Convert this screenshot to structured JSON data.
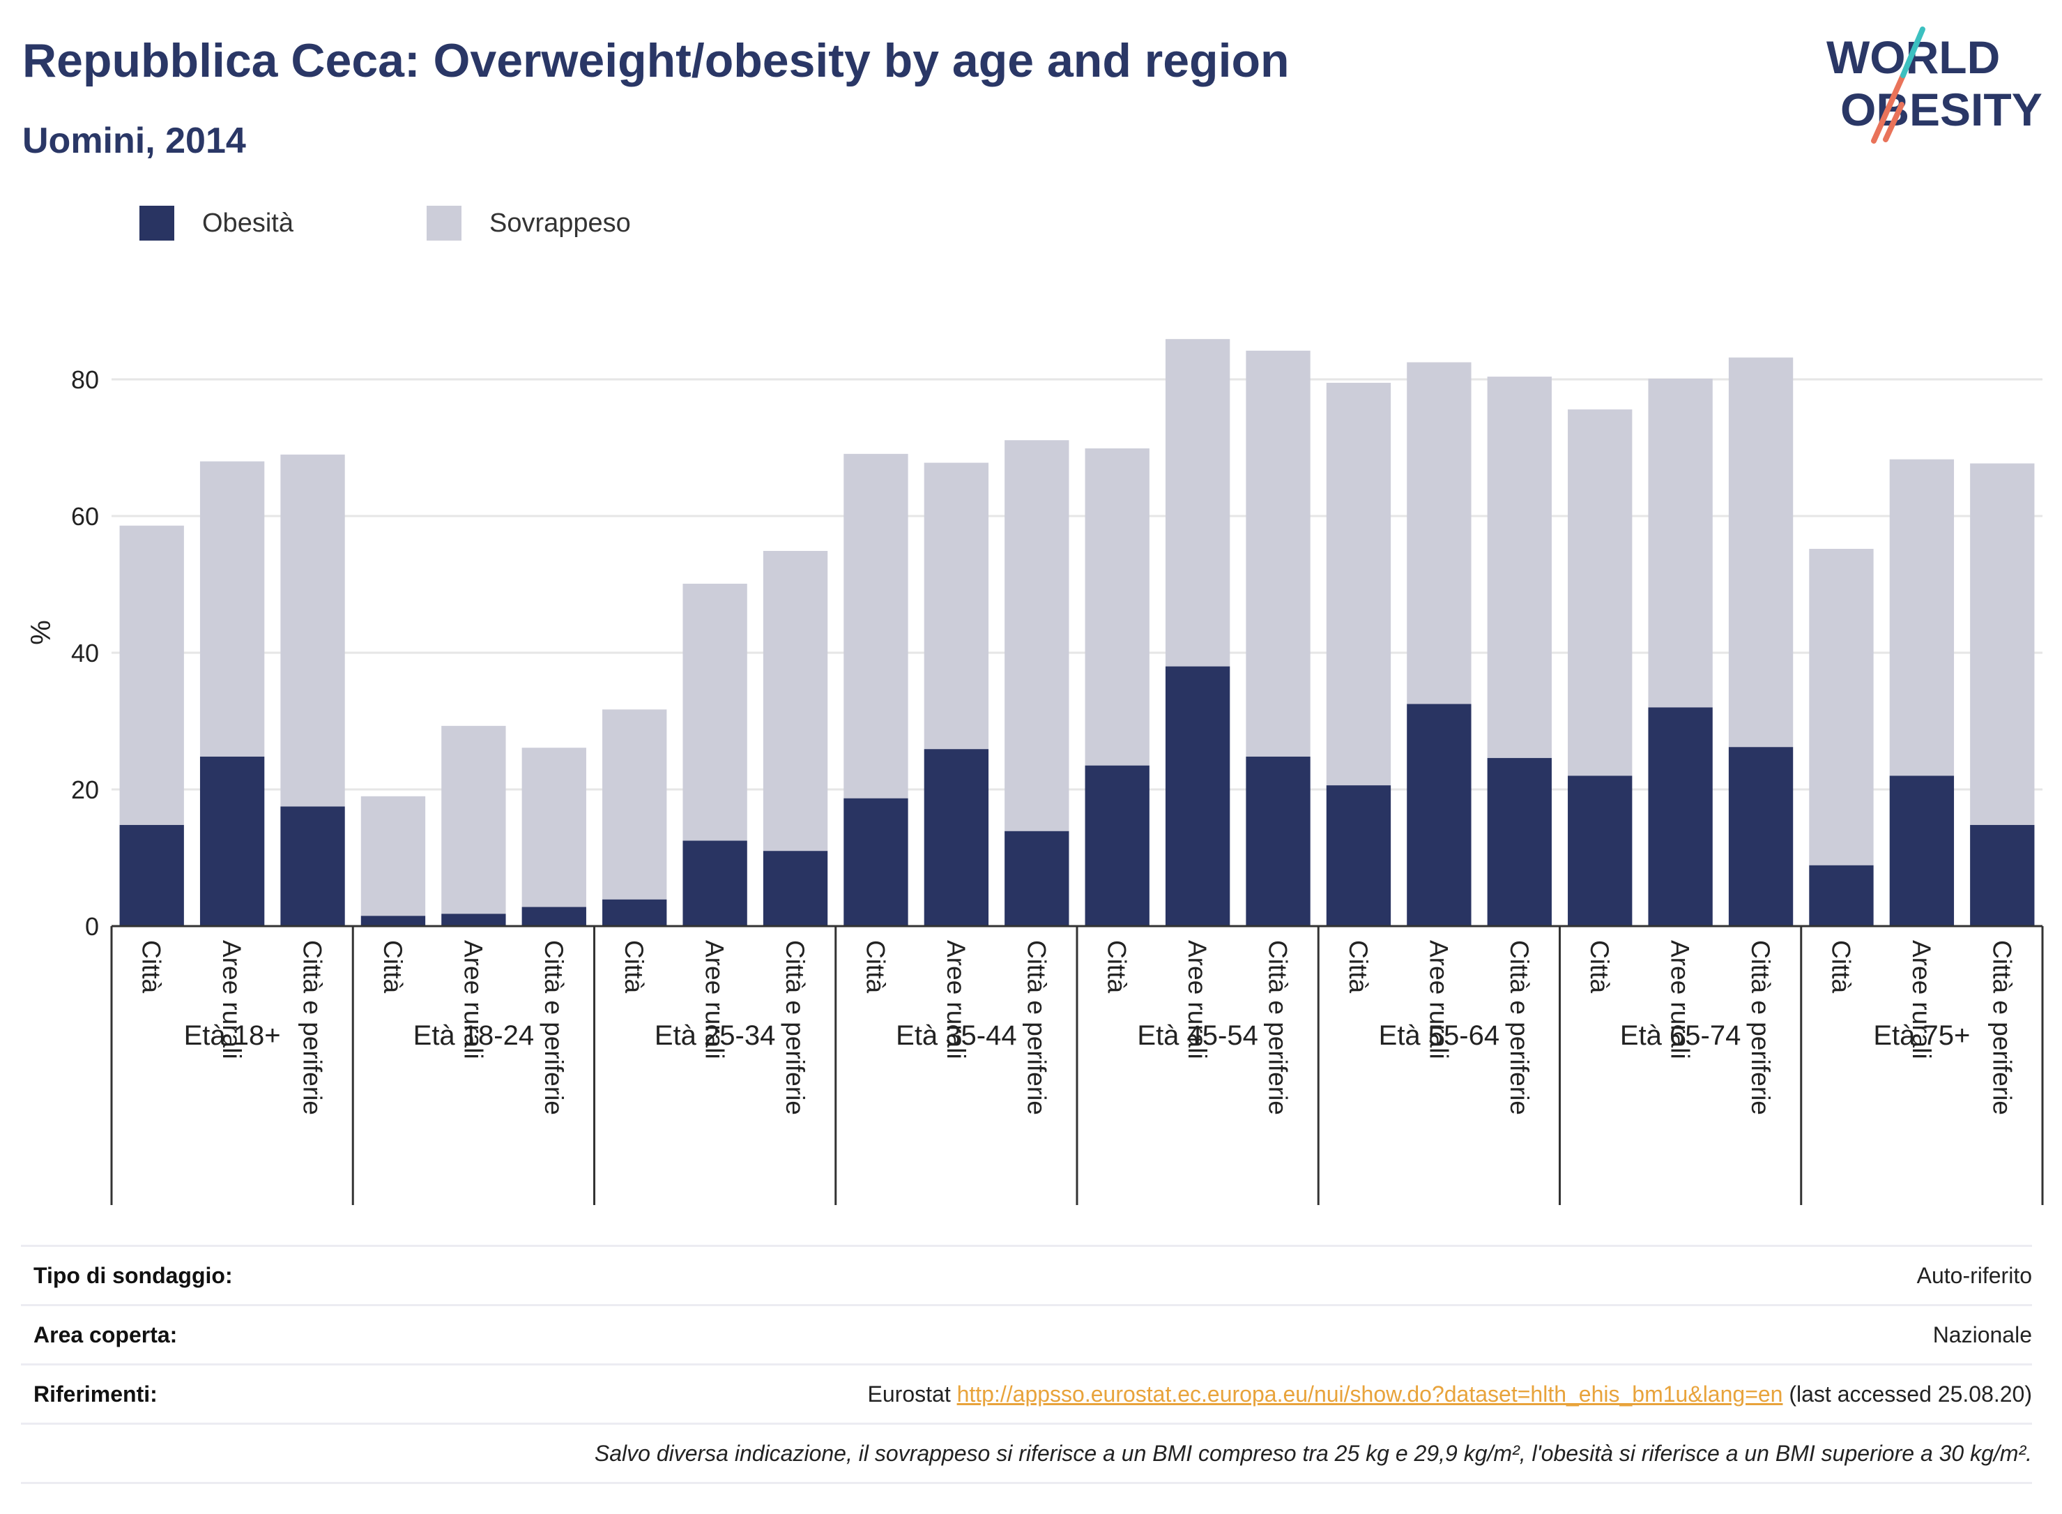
{
  "header": {
    "title": "Repubblica Ceca: Overweight/obesity by age and region",
    "subtitle": "Uomini, 2014"
  },
  "logo": {
    "line1": "WORLD",
    "line2": "OBESITY"
  },
  "colors": {
    "obesity": "#293462",
    "overweight": "#cccdd9",
    "grid": "#e6e6e6",
    "axis": "#333333",
    "text": "#2a3766",
    "link": "#e8a33b"
  },
  "chart_data": {
    "type": "bar",
    "stacked": true,
    "ylabel": "%",
    "ylim": [
      0,
      90
    ],
    "yticks": [
      0,
      20,
      40,
      60,
      80
    ],
    "grid": true,
    "legend_position": "top-left",
    "groups": [
      "Età 18+",
      "Età 18-24",
      "Età 25-34",
      "Età 35-44",
      "Età 45-54",
      "Età 55-64",
      "Età 65-74",
      "Età 75+"
    ],
    "categories": [
      "Città",
      "Aree rurali",
      "Città e periferie"
    ],
    "series": [
      {
        "name": "Obesità",
        "values": [
          [
            14.8,
            24.8,
            17.5
          ],
          [
            1.5,
            1.8,
            2.8
          ],
          [
            3.9,
            12.5,
            11.0
          ],
          [
            18.7,
            25.9,
            13.9
          ],
          [
            23.5,
            38.0,
            24.8
          ],
          [
            20.6,
            32.5,
            24.6
          ],
          [
            22.0,
            32.0,
            26.2
          ],
          [
            8.9,
            22.0,
            14.8
          ]
        ]
      },
      {
        "name": "Sovrappeso",
        "values": [
          [
            43.8,
            43.2,
            51.5
          ],
          [
            17.5,
            27.5,
            23.3
          ],
          [
            27.8,
            37.6,
            43.9
          ],
          [
            50.4,
            41.9,
            57.2
          ],
          [
            46.4,
            47.9,
            59.4
          ],
          [
            58.9,
            50.0,
            55.8
          ],
          [
            53.6,
            48.1,
            57.0
          ],
          [
            46.3,
            46.3,
            52.9
          ]
        ]
      }
    ]
  },
  "info": {
    "survey_label": "Tipo di sondaggio:",
    "survey_value": "Auto-riferito",
    "area_label": "Area coperta:",
    "area_value": "Nazionale",
    "refs_label": "Riferimenti:",
    "refs_prefix": "Eurostat ",
    "refs_link": "http://appsso.eurostat.ec.europa.eu/nui/show.do?dataset=hlth_ehis_bm1u&lang=en",
    "refs_suffix": " (last accessed 25.08.20)",
    "note": "Salvo diversa indicazione, il sovrappeso si riferisce a un BMI compreso tra 25 kg e 29,9 kg/m², l'obesità si riferisce a un BMI superiore a 30 kg/m²."
  }
}
